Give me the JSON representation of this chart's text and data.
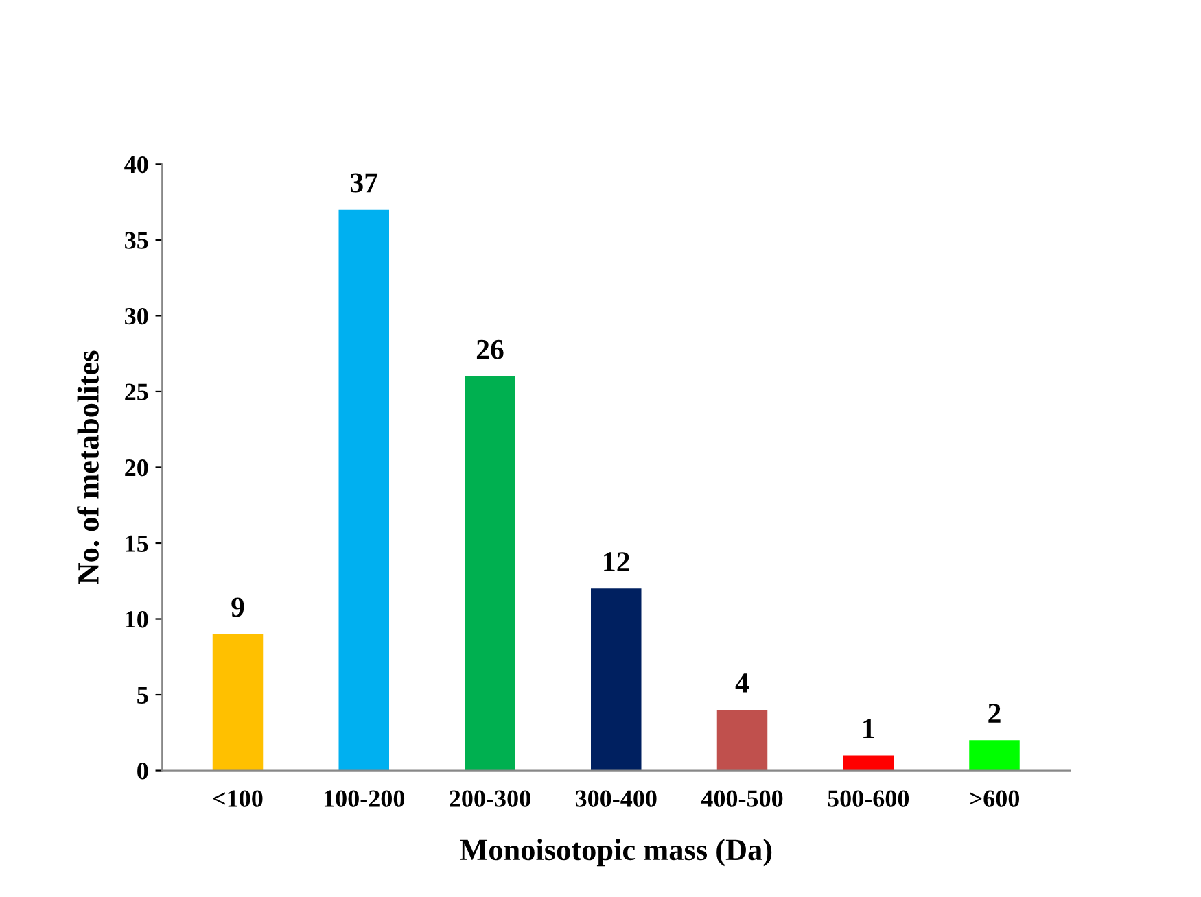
{
  "chart_data": {
    "type": "bar",
    "xlabel": "Monoisotopic mass (Da)",
    "ylabel": "No. of metabolites",
    "categories": [
      "<100",
      "100-200",
      "200-300",
      "300-400",
      "400-500",
      "500-600",
      ">600"
    ],
    "values": [
      9,
      37,
      26,
      12,
      4,
      1,
      2
    ],
    "colors": [
      "#ffc000",
      "#00b0f0",
      "#00b050",
      "#002060",
      "#c0504d",
      "#ff0000",
      "#00ff00"
    ],
    "ylim": [
      0,
      40
    ],
    "yticks": [
      0,
      5,
      10,
      15,
      20,
      25,
      30,
      35,
      40
    ],
    "grid": false,
    "data_labels": true,
    "legend": false
  }
}
